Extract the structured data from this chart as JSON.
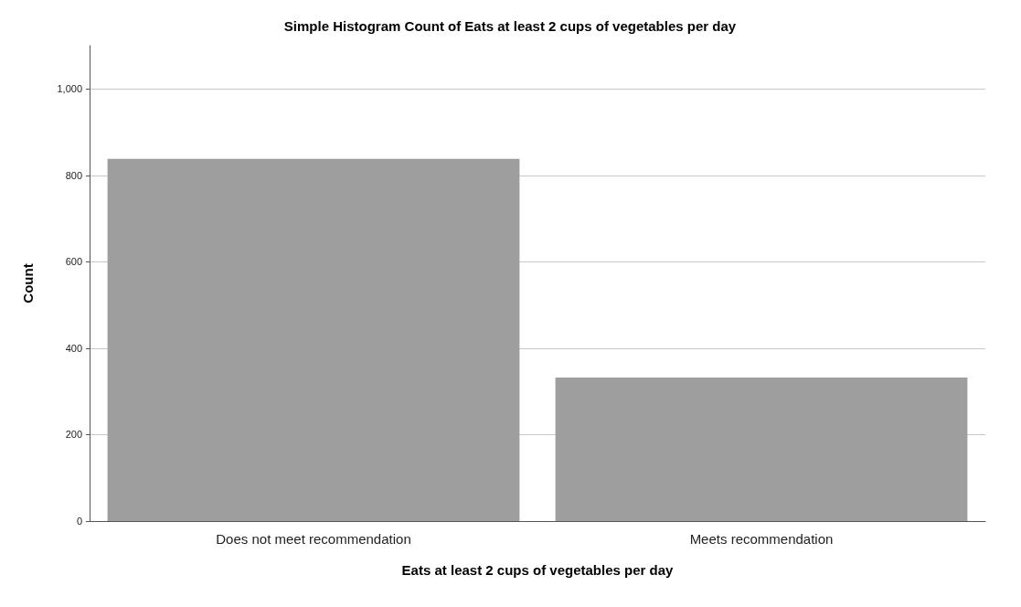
{
  "chart_data": {
    "type": "bar",
    "title": "Simple Histogram Count of Eats at least 2 cups of vegetables per day",
    "xlabel": "Eats at least 2 cups of vegetables per day",
    "ylabel": "Count",
    "categories": [
      "Does not meet recommendation",
      "Meets recommendation"
    ],
    "values": [
      838,
      332
    ],
    "color": "#9e9e9e",
    "ylim": [
      0,
      1100
    ],
    "yticks": [
      0,
      200,
      400,
      600,
      800,
      {
        "value": 1000,
        "label": "1,000"
      }
    ],
    "grid": "y"
  }
}
